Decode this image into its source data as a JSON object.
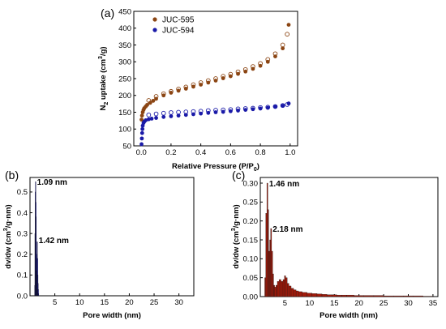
{
  "chart_data": [
    {
      "panel": "(a)",
      "type": "scatter",
      "xlabel": "Relative Pressure (P/P",
      "xlabel_sub": "0",
      "xlabel_tail": ")",
      "ylabel_pre": "N",
      "ylabel_sub": "2",
      "ylabel_mid": " uptake (cm",
      "ylabel_sup": "3",
      "ylabel_tail": "/g)",
      "xlim": [
        -0.05,
        1.05
      ],
      "ylim": [
        50,
        450
      ],
      "xticks": [
        "0.0",
        "0.2",
        "0.4",
        "0.6",
        "0.8",
        "1.0"
      ],
      "yticks": [
        "50",
        "100",
        "150",
        "200",
        "250",
        "300",
        "350",
        "400",
        "450"
      ],
      "legend_position": "top-left",
      "series": [
        {
          "name": "JUC-595",
          "color": "#8b4513",
          "adsorption": [
            [
              0.002,
              128
            ],
            [
              0.005,
              140
            ],
            [
              0.01,
              150
            ],
            [
              0.015,
              157
            ],
            [
              0.02,
              162
            ],
            [
              0.03,
              167
            ],
            [
              0.04,
              172
            ],
            [
              0.06,
              178
            ],
            [
              0.08,
              184
            ],
            [
              0.1,
              190
            ],
            [
              0.15,
              200
            ],
            [
              0.2,
              208
            ],
            [
              0.25,
              214
            ],
            [
              0.3,
              220
            ],
            [
              0.35,
              226
            ],
            [
              0.4,
              232
            ],
            [
              0.45,
              238
            ],
            [
              0.5,
              244
            ],
            [
              0.55,
              251
            ],
            [
              0.6,
              257
            ],
            [
              0.65,
              264
            ],
            [
              0.7,
              271
            ],
            [
              0.75,
              279
            ],
            [
              0.8,
              288
            ],
            [
              0.85,
              300
            ],
            [
              0.9,
              316
            ],
            [
              0.95,
              340
            ],
            [
              0.99,
              410
            ]
          ],
          "desorption": [
            [
              0.05,
              185
            ],
            [
              0.1,
              197
            ],
            [
              0.15,
              205
            ],
            [
              0.2,
              212
            ],
            [
              0.25,
              219
            ],
            [
              0.3,
              225
            ],
            [
              0.35,
              232
            ],
            [
              0.4,
              238
            ],
            [
              0.45,
              244
            ],
            [
              0.5,
              250
            ],
            [
              0.55,
              257
            ],
            [
              0.6,
              263
            ],
            [
              0.65,
              270
            ],
            [
              0.7,
              277
            ],
            [
              0.75,
              286
            ],
            [
              0.8,
              295
            ],
            [
              0.85,
              307
            ],
            [
              0.9,
              324
            ],
            [
              0.95,
              350
            ],
            [
              0.98,
              382
            ]
          ]
        },
        {
          "name": "JUC-594",
          "color": "#1a1aa8",
          "adsorption": [
            [
              0.002,
              55
            ],
            [
              0.004,
              72
            ],
            [
              0.006,
              88
            ],
            [
              0.008,
              100
            ],
            [
              0.01,
              110
            ],
            [
              0.015,
              118
            ],
            [
              0.02,
              122
            ],
            [
              0.03,
              126
            ],
            [
              0.05,
              129
            ],
            [
              0.07,
              131
            ],
            [
              0.1,
              133
            ],
            [
              0.15,
              136
            ],
            [
              0.2,
              138
            ],
            [
              0.25,
              140
            ],
            [
              0.3,
              142
            ],
            [
              0.35,
              144
            ],
            [
              0.4,
              146
            ],
            [
              0.45,
              148
            ],
            [
              0.5,
              150
            ],
            [
              0.55,
              151
            ],
            [
              0.6,
              153
            ],
            [
              0.65,
              155
            ],
            [
              0.7,
              157
            ],
            [
              0.75,
              159
            ],
            [
              0.8,
              161
            ],
            [
              0.85,
              163
            ],
            [
              0.9,
              166
            ],
            [
              0.95,
              169
            ],
            [
              0.99,
              176
            ]
          ],
          "desorption": [
            [
              0.05,
              142
            ],
            [
              0.1,
              145
            ],
            [
              0.15,
              147
            ],
            [
              0.2,
              149
            ],
            [
              0.25,
              150
            ],
            [
              0.3,
              151
            ],
            [
              0.35,
              152
            ],
            [
              0.4,
              153
            ],
            [
              0.45,
              155
            ],
            [
              0.5,
              156
            ],
            [
              0.55,
              157
            ],
            [
              0.6,
              158
            ],
            [
              0.65,
              160
            ],
            [
              0.7,
              161
            ],
            [
              0.75,
              162
            ],
            [
              0.8,
              164
            ],
            [
              0.85,
              165
            ],
            [
              0.9,
              167
            ],
            [
              0.95,
              170
            ],
            [
              0.98,
              173
            ]
          ]
        }
      ]
    },
    {
      "panel": "(b)",
      "type": "bar",
      "xlabel": "Pore width (nm)",
      "ylabel_pre": "dv/dw (cm",
      "ylabel_sup": "3",
      "ylabel_tail": "/g·nm)",
      "xlim": [
        0,
        33
      ],
      "ylim": [
        0,
        0.57
      ],
      "xticks": [
        "5",
        "10",
        "15",
        "20",
        "25",
        "30"
      ],
      "yticks": [
        "0.0",
        "0.1",
        "0.2",
        "0.3",
        "0.4",
        "0.5"
      ],
      "color": "#1a1aa8",
      "annotations": [
        {
          "text": "1.09 nm",
          "x": 1.09,
          "y": 0.55
        },
        {
          "text": "1.42 nm",
          "x": 1.42,
          "y": 0.27
        }
      ],
      "x": [
        0.95,
        1.0,
        1.05,
        1.09,
        1.13,
        1.18,
        1.22,
        1.27,
        1.32,
        1.37,
        1.42,
        1.47,
        1.52,
        1.57,
        1.62,
        1.67
      ],
      "values": [
        0.05,
        0.3,
        0.5,
        0.55,
        0.45,
        0.38,
        0.2,
        0.12,
        0.1,
        0.18,
        0.26,
        0.18,
        0.1,
        0.06,
        0.03,
        0.01
      ]
    },
    {
      "panel": "(c)",
      "type": "bar",
      "xlabel": "Pore width (nm)",
      "ylabel_pre": "dv/dw (cm",
      "ylabel_sup": "3",
      "ylabel_tail": "/g·nm)",
      "xlim": [
        0,
        36
      ],
      "ylim": [
        0,
        0.315
      ],
      "xticks": [
        "5",
        "10",
        "15",
        "20",
        "25",
        "30",
        "35"
      ],
      "yticks": [
        "0.00",
        "0.05",
        "0.10",
        "0.15",
        "0.20",
        "0.25",
        "0.30"
      ],
      "color": "#a01a0a",
      "annotations": [
        {
          "text": "1.46 nm",
          "x": 1.46,
          "y": 0.3
        },
        {
          "text": "2.18 nm",
          "x": 2.18,
          "y": 0.18
        }
      ],
      "x": [
        1.0,
        1.2,
        1.46,
        1.6,
        1.8,
        2.0,
        2.18,
        2.4,
        2.6,
        2.8,
        3.0,
        3.3,
        3.6,
        4.0,
        4.4,
        4.8,
        5.0,
        5.3,
        5.6,
        6.0,
        6.5,
        7.0,
        7.5,
        8.0,
        9.0,
        10.0,
        11.0,
        12.0,
        13.0,
        14.0,
        15.0,
        16.0,
        17.0,
        18.0,
        20.0,
        22.0,
        24.0,
        26.0,
        28.0,
        30.0,
        32.0,
        34.0
      ],
      "values": [
        0.05,
        0.22,
        0.3,
        0.23,
        0.12,
        0.15,
        0.18,
        0.12,
        0.06,
        0.03,
        0.025,
        0.03,
        0.04,
        0.045,
        0.04,
        0.045,
        0.055,
        0.05,
        0.035,
        0.028,
        0.022,
        0.018,
        0.015,
        0.013,
        0.011,
        0.009,
        0.008,
        0.007,
        0.006,
        0.005,
        0.005,
        0.004,
        0.004,
        0.004,
        0.003,
        0.003,
        0.003,
        0.002,
        0.002,
        0.002,
        0.002,
        0.001
      ]
    }
  ]
}
